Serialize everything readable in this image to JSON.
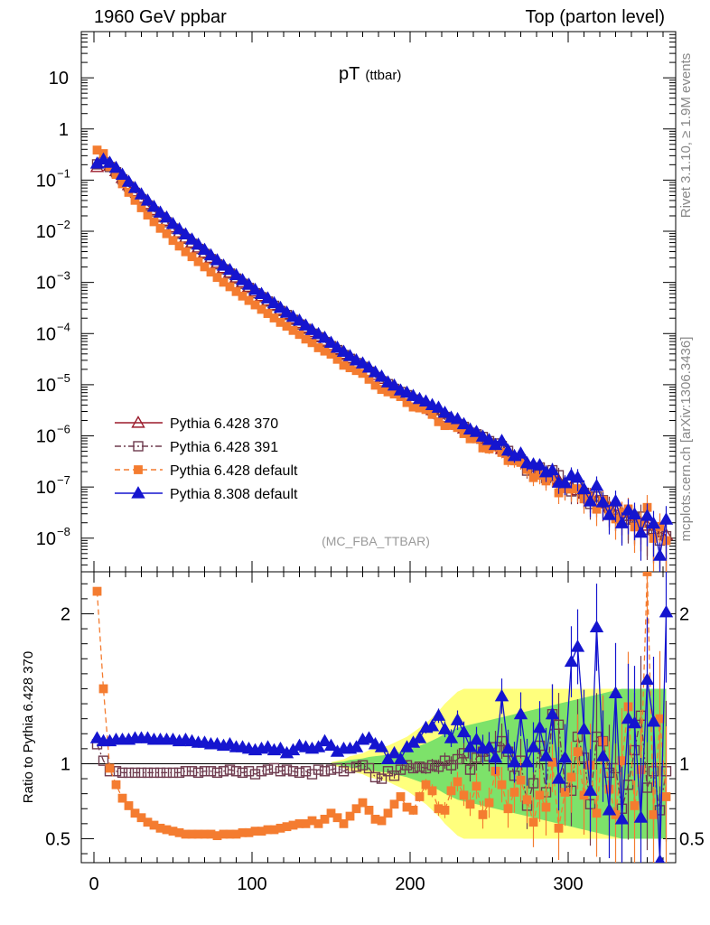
{
  "header": {
    "left": "1960 GeV ppbar",
    "right": "Top (parton level)"
  },
  "side": {
    "rivet": "Rivet 3.1.10, ≥ 1.9M events",
    "mcplots": "mcplots.cern.ch [arXiv:1306.3436]"
  },
  "chart_data": {
    "type": "line",
    "title": "pT",
    "title_sub": "(ttbar)",
    "watermark": "(MC_FBA_TTBAR)",
    "ylabel_ratio": "Ratio to Pythia 6.428 370",
    "xlim": [
      -8,
      368
    ],
    "ylim_main": [
      2.2e-09,
      80
    ],
    "ylim_ratio": [
      0.34,
      2.28
    ],
    "yscale_main": "log",
    "legend_position": "lower-left",
    "x_ticks": [
      "0",
      "100",
      "200",
      "300"
    ],
    "y_ticks_main": [
      {
        "v": 10,
        "label": "10"
      },
      {
        "v": 1,
        "label": "1"
      },
      {
        "v": 0.1,
        "base": "10",
        "exp": "−1"
      },
      {
        "v": 0.01,
        "base": "10",
        "exp": "−2"
      },
      {
        "v": 0.001,
        "base": "10",
        "exp": "−3"
      },
      {
        "v": 0.0001,
        "base": "10",
        "exp": "−4"
      },
      {
        "v": 1e-05,
        "base": "10",
        "exp": "−5"
      },
      {
        "v": 1e-06,
        "base": "10",
        "exp": "−6"
      },
      {
        "v": 1e-07,
        "base": "10",
        "exp": "−7"
      },
      {
        "v": 1e-08,
        "base": "10",
        "exp": "−8"
      }
    ],
    "y_ticks_ratio": [
      {
        "v": 2,
        "label": "2"
      },
      {
        "v": 1,
        "label": "1"
      },
      {
        "v": 0.5,
        "label": "0.5"
      }
    ],
    "x": [
      2,
      6,
      10,
      14,
      18,
      22,
      26,
      30,
      34,
      38,
      42,
      46,
      50,
      54,
      58,
      62,
      66,
      70,
      74,
      78,
      82,
      86,
      90,
      94,
      98,
      102,
      106,
      110,
      114,
      118,
      122,
      126,
      130,
      134,
      138,
      142,
      146,
      150,
      154,
      158,
      162,
      166,
      170,
      174,
      178,
      182,
      186,
      190,
      194,
      198,
      202,
      206,
      210,
      214,
      218,
      222,
      226,
      230,
      234,
      238,
      242,
      246,
      250,
      254,
      258,
      262,
      266,
      270,
      274,
      278,
      282,
      286,
      290,
      294,
      298,
      302,
      306,
      310,
      314,
      318,
      322,
      326,
      330,
      334,
      338,
      342,
      346,
      350,
      354,
      358,
      362
    ],
    "reference_values": [
      0.18,
      0.22,
      0.19,
      0.15,
      0.11,
      0.08,
      0.06,
      0.045,
      0.034,
      0.026,
      0.02,
      0.016,
      0.012,
      0.0095,
      0.0075,
      0.006,
      0.0048,
      0.0038,
      0.003,
      0.0024,
      0.0019,
      0.00155,
      0.00125,
      0.001,
      0.00082,
      0.00066,
      0.00054,
      0.00044,
      0.00036,
      0.00029,
      0.00024,
      0.000195,
      0.00016,
      0.00013,
      0.000107,
      8.8e-05,
      7.2e-05,
      5.9e-05,
      4.9e-05,
      4e-05,
      3.3e-05,
      2.7e-05,
      2.25e-05,
      1.85e-05,
      1.55e-05,
      1.3e-05,
      1.08e-05,
      9e-06,
      7.5e-06,
      6.3e-06,
      5.3e-06,
      4.5e-06,
      3.8e-06,
      3.2e-06,
      2.7e-06,
      2.3e-06,
      1.95e-06,
      1.65e-06,
      1.4e-06,
      1.2e-06,
      1.03e-06,
      8.8e-07,
      7.5e-07,
      6.4e-07,
      5.5e-07,
      4.7e-07,
      4e-07,
      3.4e-07,
      2.9e-07,
      2.5e-07,
      2.15e-07,
      1.85e-07,
      1.6e-07,
      1.35e-07,
      1.15e-07,
      1e-07,
      8.6e-08,
      7.4e-08,
      6.4e-08,
      5.5e-08,
      4.8e-08,
      4.1e-08,
      3.6e-08,
      3.1e-08,
      2.7e-08,
      2.3e-08,
      2e-08,
      1.75e-08,
      1.5e-08,
      1.3e-08,
      1.15e-08
    ],
    "series": [
      {
        "name": "Pythia 6.428 370",
        "color": "#9b1c2c",
        "marker": "triangle-open",
        "dash": "",
        "ratio": [
          1,
          1,
          1,
          1,
          1,
          1,
          1,
          1,
          1,
          1,
          1,
          1,
          1,
          1,
          1,
          1,
          1,
          1,
          1,
          1,
          1,
          1,
          1,
          1,
          1,
          1,
          1,
          1,
          1,
          1,
          1,
          1,
          1,
          1,
          1,
          1,
          1,
          1,
          1,
          1,
          1,
          1,
          1,
          1,
          1,
          1,
          1,
          1,
          1,
          1,
          1,
          1,
          1,
          1,
          1,
          1,
          1,
          1,
          1,
          1,
          1,
          1,
          1,
          1,
          1,
          1,
          1,
          1,
          1,
          1,
          1,
          1,
          1,
          1,
          1,
          1,
          1,
          1,
          1,
          1,
          1,
          1,
          1,
          1,
          1,
          1,
          1,
          1,
          1,
          1,
          1
        ]
      },
      {
        "name": "Pythia 6.428 391",
        "color": "#6e3b4e",
        "marker": "square-open",
        "dash": "7,3,2,3",
        "ratio": [
          1.13,
          1.02,
          0.95,
          0.95,
          0.94,
          0.94,
          0.94,
          0.94,
          0.94,
          0.94,
          0.94,
          0.94,
          0.94,
          0.94,
          0.95,
          0.95,
          0.94,
          0.95,
          0.95,
          0.94,
          0.95,
          0.96,
          0.95,
          0.94,
          0.95,
          0.93,
          0.95,
          0.96,
          0.97,
          0.95,
          0.96,
          0.95,
          0.94,
          0.95,
          0.93,
          0.96,
          0.95,
          0.96,
          0.97,
          0.95,
          0.97,
          0.98,
          0.99,
          0.97,
          0.91,
          0.9,
          0.95,
          0.92,
          0.96,
          0.99,
          0.97,
          0.98,
          0.97,
          0.99,
          0.98,
          1.02,
          0.99,
          1.03,
          1.07,
          0.96,
          1.04,
          1.08,
          1.05,
          1.11,
          1.15,
          1.08,
          0.92,
          1.02,
          0.72,
          0.87,
          1.12,
          0.81,
          1.33,
          1.26,
          0.84,
          0.82,
          1.18,
          1.04,
          0.73,
          1.18,
          1.15,
          0.94,
          0.97,
          0.7,
          0.86,
          1.09,
          1.32,
          0.84,
          0.95,
          0.69,
          0.95
        ]
      },
      {
        "name": "Pythia 6.428 default",
        "color": "#f47c30",
        "marker": "square-filled",
        "dash": "6,4",
        "ratio": [
          2.15,
          1.5,
          0.97,
          0.86,
          0.77,
          0.72,
          0.67,
          0.64,
          0.61,
          0.59,
          0.57,
          0.56,
          0.55,
          0.54,
          0.53,
          0.53,
          0.53,
          0.53,
          0.53,
          0.52,
          0.53,
          0.53,
          0.53,
          0.54,
          0.54,
          0.55,
          0.55,
          0.56,
          0.56,
          0.57,
          0.58,
          0.59,
          0.6,
          0.6,
          0.62,
          0.6,
          0.63,
          0.67,
          0.64,
          0.6,
          0.65,
          0.7,
          0.74,
          0.69,
          0.63,
          0.62,
          0.67,
          0.73,
          0.78,
          0.71,
          0.69,
          0.78,
          0.86,
          0.82,
          0.7,
          0.69,
          0.82,
          0.88,
          0.79,
          0.73,
          0.85,
          0.66,
          0.74,
          0.95,
          0.86,
          0.7,
          0.81,
          0.89,
          0.76,
          0.61,
          0.79,
          0.71,
          1.01,
          0.57,
          0.81,
          0.91,
          1.08,
          0.79,
          0.99,
          0.67,
          1.15,
          0.83,
          0.66,
          1.02,
          1.38,
          0.72,
          0.96,
          2.28,
          0.66,
          1.3,
          0.78
        ]
      },
      {
        "name": "Pythia 8.308 default",
        "color": "#1515cf",
        "marker": "triangle-filled",
        "dash": "",
        "ratio": [
          1.17,
          1.15,
          1.15,
          1.16,
          1.16,
          1.16,
          1.17,
          1.17,
          1.17,
          1.16,
          1.16,
          1.16,
          1.16,
          1.15,
          1.16,
          1.15,
          1.14,
          1.14,
          1.13,
          1.13,
          1.12,
          1.13,
          1.11,
          1.11,
          1.1,
          1.09,
          1.1,
          1.11,
          1.09,
          1.1,
          1.07,
          1.09,
          1.12,
          1.11,
          1.1,
          1.11,
          1.15,
          1.12,
          1.08,
          1.1,
          1.1,
          1.11,
          1.16,
          1.17,
          1.13,
          1.11,
          1.03,
          1.07,
          1.03,
          1.11,
          1.14,
          1.17,
          1.24,
          1.25,
          1.32,
          1.23,
          1.17,
          1.29,
          1.21,
          1.11,
          1.16,
          1.1,
          1.11,
          1.04,
          1.45,
          1.1,
          1.01,
          1.33,
          1.01,
          1.11,
          1.24,
          1.05,
          1.33,
          0.9,
          1.04,
          1.68,
          1.78,
          1.23,
          0.82,
          1.91,
          1.05,
          0.69,
          1.47,
          0.63,
          1.3,
          1.27,
          0.64,
          1.56,
          1.28,
          0.35,
          2.01
        ]
      }
    ],
    "band": {
      "colors": [
        "#ffff66",
        "#66dd66"
      ],
      "x_start": 150,
      "x_end": 362,
      "half_width_outer": [
        0.01,
        0.02,
        0.03,
        0.05,
        0.06,
        0.07,
        0.09,
        0.1,
        0.11,
        0.12,
        0.14,
        0.16,
        0.18,
        0.21,
        0.24,
        0.27,
        0.31,
        0.35,
        0.4,
        0.44,
        0.48,
        0.5,
        0.5,
        0.5,
        0.5,
        0.5,
        0.5,
        0.5,
        0.5,
        0.5,
        0.5,
        0.5,
        0.5,
        0.5,
        0.5,
        0.5,
        0.5,
        0.5,
        0.5,
        0.5,
        0.5,
        0.5,
        0.5,
        0.5,
        0.5,
        0.5,
        0.5,
        0.5,
        0.5,
        0.5,
        0.5,
        0.5,
        0.5,
        0.5
      ],
      "half_width_inner": [
        0.005,
        0.01,
        0.015,
        0.025,
        0.03,
        0.035,
        0.045,
        0.05,
        0.055,
        0.06,
        0.07,
        0.08,
        0.09,
        0.105,
        0.12,
        0.135,
        0.155,
        0.175,
        0.2,
        0.22,
        0.24,
        0.25,
        0.26,
        0.27,
        0.28,
        0.29,
        0.3,
        0.31,
        0.32,
        0.33,
        0.34,
        0.35,
        0.36,
        0.37,
        0.38,
        0.39,
        0.4,
        0.41,
        0.42,
        0.43,
        0.44,
        0.45,
        0.46,
        0.47,
        0.48,
        0.49,
        0.5,
        0.5,
        0.5,
        0.5,
        0.5,
        0.5,
        0.5,
        0.5
      ]
    }
  }
}
